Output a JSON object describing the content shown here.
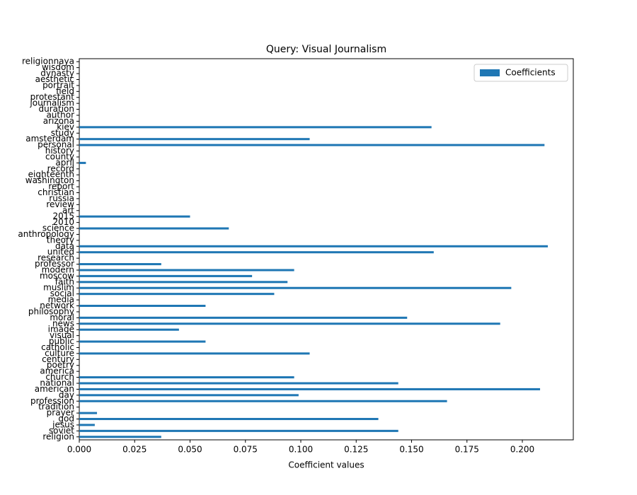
{
  "chart_data": {
    "type": "barh",
    "title": "Query: Visual Journalism",
    "xlabel": "Coefficient values",
    "categories": [
      "religion",
      "soviet",
      "jesus",
      "god",
      "prayer",
      "tradition",
      "profession",
      "day",
      "american",
      "national",
      "church",
      "america",
      "poetry",
      "century",
      "culture",
      "catholic",
      "public",
      "visual",
      "image",
      "news",
      "moral",
      "philosophy",
      "network",
      "media",
      "social",
      "muslim",
      "faith",
      "moscow",
      "modern",
      "professor",
      "research",
      "united",
      "data",
      "theory",
      "anthropology",
      "science",
      "2010",
      "2015",
      "art",
      "review",
      "russia",
      "christian",
      "report",
      "washington",
      "eighteenth",
      "record",
      "april",
      "county",
      "history",
      "personal",
      "amsterdam",
      "study",
      "kiev",
      "arizona",
      "author",
      "duration",
      "journalism",
      "protestant",
      "field",
      "portrait",
      "aesthetic",
      "dynasty",
      "wisdom",
      "religionnaya"
    ],
    "series": [
      {
        "name": "Coefficients",
        "color": "#1f77b4",
        "values": [
          0.037,
          0.144,
          0.007,
          0.135,
          0.008,
          0,
          0.166,
          0.099,
          0.208,
          0.144,
          0.097,
          0,
          0,
          0,
          0.104,
          0,
          0.057,
          0,
          0.045,
          0.19,
          0.148,
          0,
          0.057,
          0,
          0.088,
          0.195,
          0.094,
          0.078,
          0.097,
          0.037,
          0,
          0.16,
          0.2115,
          0,
          0,
          0.0675,
          0,
          0.05,
          0,
          0,
          0,
          0,
          0,
          0,
          0,
          0,
          0.003,
          0,
          0,
          0.21,
          0.104,
          0,
          0.159,
          0,
          0,
          0,
          0,
          0,
          0,
          0,
          0,
          0,
          0,
          0
        ]
      }
    ],
    "xlim": [
      0,
      0.223
    ],
    "xticks": [
      {
        "value": 0,
        "label": "0.000"
      },
      {
        "value": 0.025,
        "label": "0.025"
      },
      {
        "value": 0.05,
        "label": "0.050"
      },
      {
        "value": 0.075,
        "label": "0.075"
      },
      {
        "value": 0.1,
        "label": "0.100"
      },
      {
        "value": 0.125,
        "label": "0.125"
      },
      {
        "value": 0.15,
        "label": "0.150"
      },
      {
        "value": 0.175,
        "label": "0.175"
      },
      {
        "value": 0.2,
        "label": "0.200"
      }
    ],
    "legend": "upper right"
  }
}
